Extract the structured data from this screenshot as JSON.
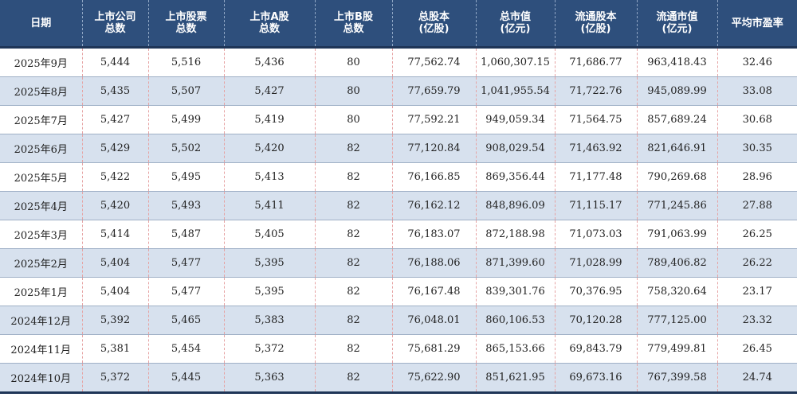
{
  "columns": [
    {
      "line1": "日期",
      "line2": ""
    },
    {
      "line1": "上市公司",
      "line2": "总数"
    },
    {
      "line1": "上市股票",
      "line2": "总数"
    },
    {
      "line1": "上市A股",
      "line2": "总数"
    },
    {
      "line1": "上市B股",
      "line2": "总数"
    },
    {
      "line1": "总股本",
      "line2": "(亿股)"
    },
    {
      "line1": "总市值",
      "line2": "(亿元)"
    },
    {
      "line1": "流通股本",
      "line2": "(亿股)"
    },
    {
      "line1": "流通市值",
      "line2": "(亿元)"
    },
    {
      "line1": "平均市盈率",
      "line2": ""
    }
  ],
  "rows": [
    [
      "2025年9月",
      "5,444",
      "5,516",
      "5,436",
      "80",
      "77,562.74",
      "1,060,307.15",
      "71,686.77",
      "963,418.43",
      "32.46"
    ],
    [
      "2025年8月",
      "5,435",
      "5,507",
      "5,427",
      "80",
      "77,659.79",
      "1,041,955.54",
      "71,722.76",
      "945,089.99",
      "33.08"
    ],
    [
      "2025年7月",
      "5,427",
      "5,499",
      "5,419",
      "80",
      "77,592.21",
      "949,059.34",
      "71,564.75",
      "857,689.24",
      "30.68"
    ],
    [
      "2025年6月",
      "5,429",
      "5,502",
      "5,420",
      "82",
      "77,120.84",
      "908,029.54",
      "71,463.92",
      "821,646.91",
      "30.35"
    ],
    [
      "2025年5月",
      "5,422",
      "5,495",
      "5,413",
      "82",
      "76,166.85",
      "869,356.44",
      "71,177.48",
      "790,269.68",
      "28.96"
    ],
    [
      "2025年4月",
      "5,420",
      "5,493",
      "5,411",
      "82",
      "76,162.12",
      "848,896.09",
      "71,115.17",
      "771,245.86",
      "27.88"
    ],
    [
      "2025年3月",
      "5,414",
      "5,487",
      "5,405",
      "82",
      "76,183.07",
      "872,188.98",
      "71,073.03",
      "791,063.99",
      "26.25"
    ],
    [
      "2025年2月",
      "5,404",
      "5,477",
      "5,395",
      "82",
      "76,188.06",
      "871,399.60",
      "71,028.99",
      "789,406.82",
      "26.22"
    ],
    [
      "2025年1月",
      "5,404",
      "5,477",
      "5,395",
      "82",
      "76,167.48",
      "839,301.76",
      "70,376.95",
      "758,320.64",
      "23.17"
    ],
    [
      "2024年12月",
      "5,392",
      "5,465",
      "5,383",
      "82",
      "76,048.01",
      "860,106.53",
      "70,120.28",
      "777,125.00",
      "23.32"
    ],
    [
      "2024年11月",
      "5,381",
      "5,454",
      "5,372",
      "82",
      "75,681.29",
      "865,153.66",
      "69,843.79",
      "779,499.81",
      "26.45"
    ],
    [
      "2024年10月",
      "5,372",
      "5,445",
      "5,363",
      "82",
      "75,622.90",
      "851,621.95",
      "69,673.16",
      "767,399.58",
      "24.74"
    ]
  ],
  "colors": {
    "header_bg": "#2e4f7c",
    "stripe_bg": "#d7e1ee",
    "row_bg": "#ffffff"
  }
}
